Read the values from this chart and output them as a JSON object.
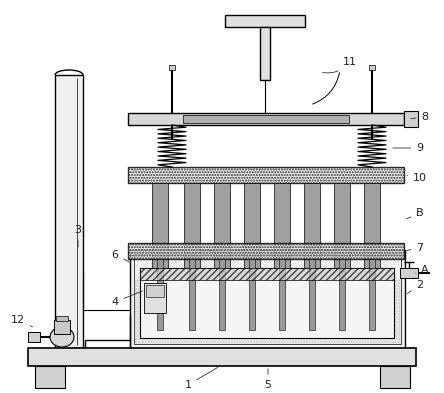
{
  "bg_color": "#ffffff",
  "lc": "#000000",
  "label_color": "#222222",
  "gray_light": "#e8e8e8",
  "gray_med": "#c8c8c8",
  "gray_dark": "#888888",
  "hatch_gray": "#d0d0d0"
}
